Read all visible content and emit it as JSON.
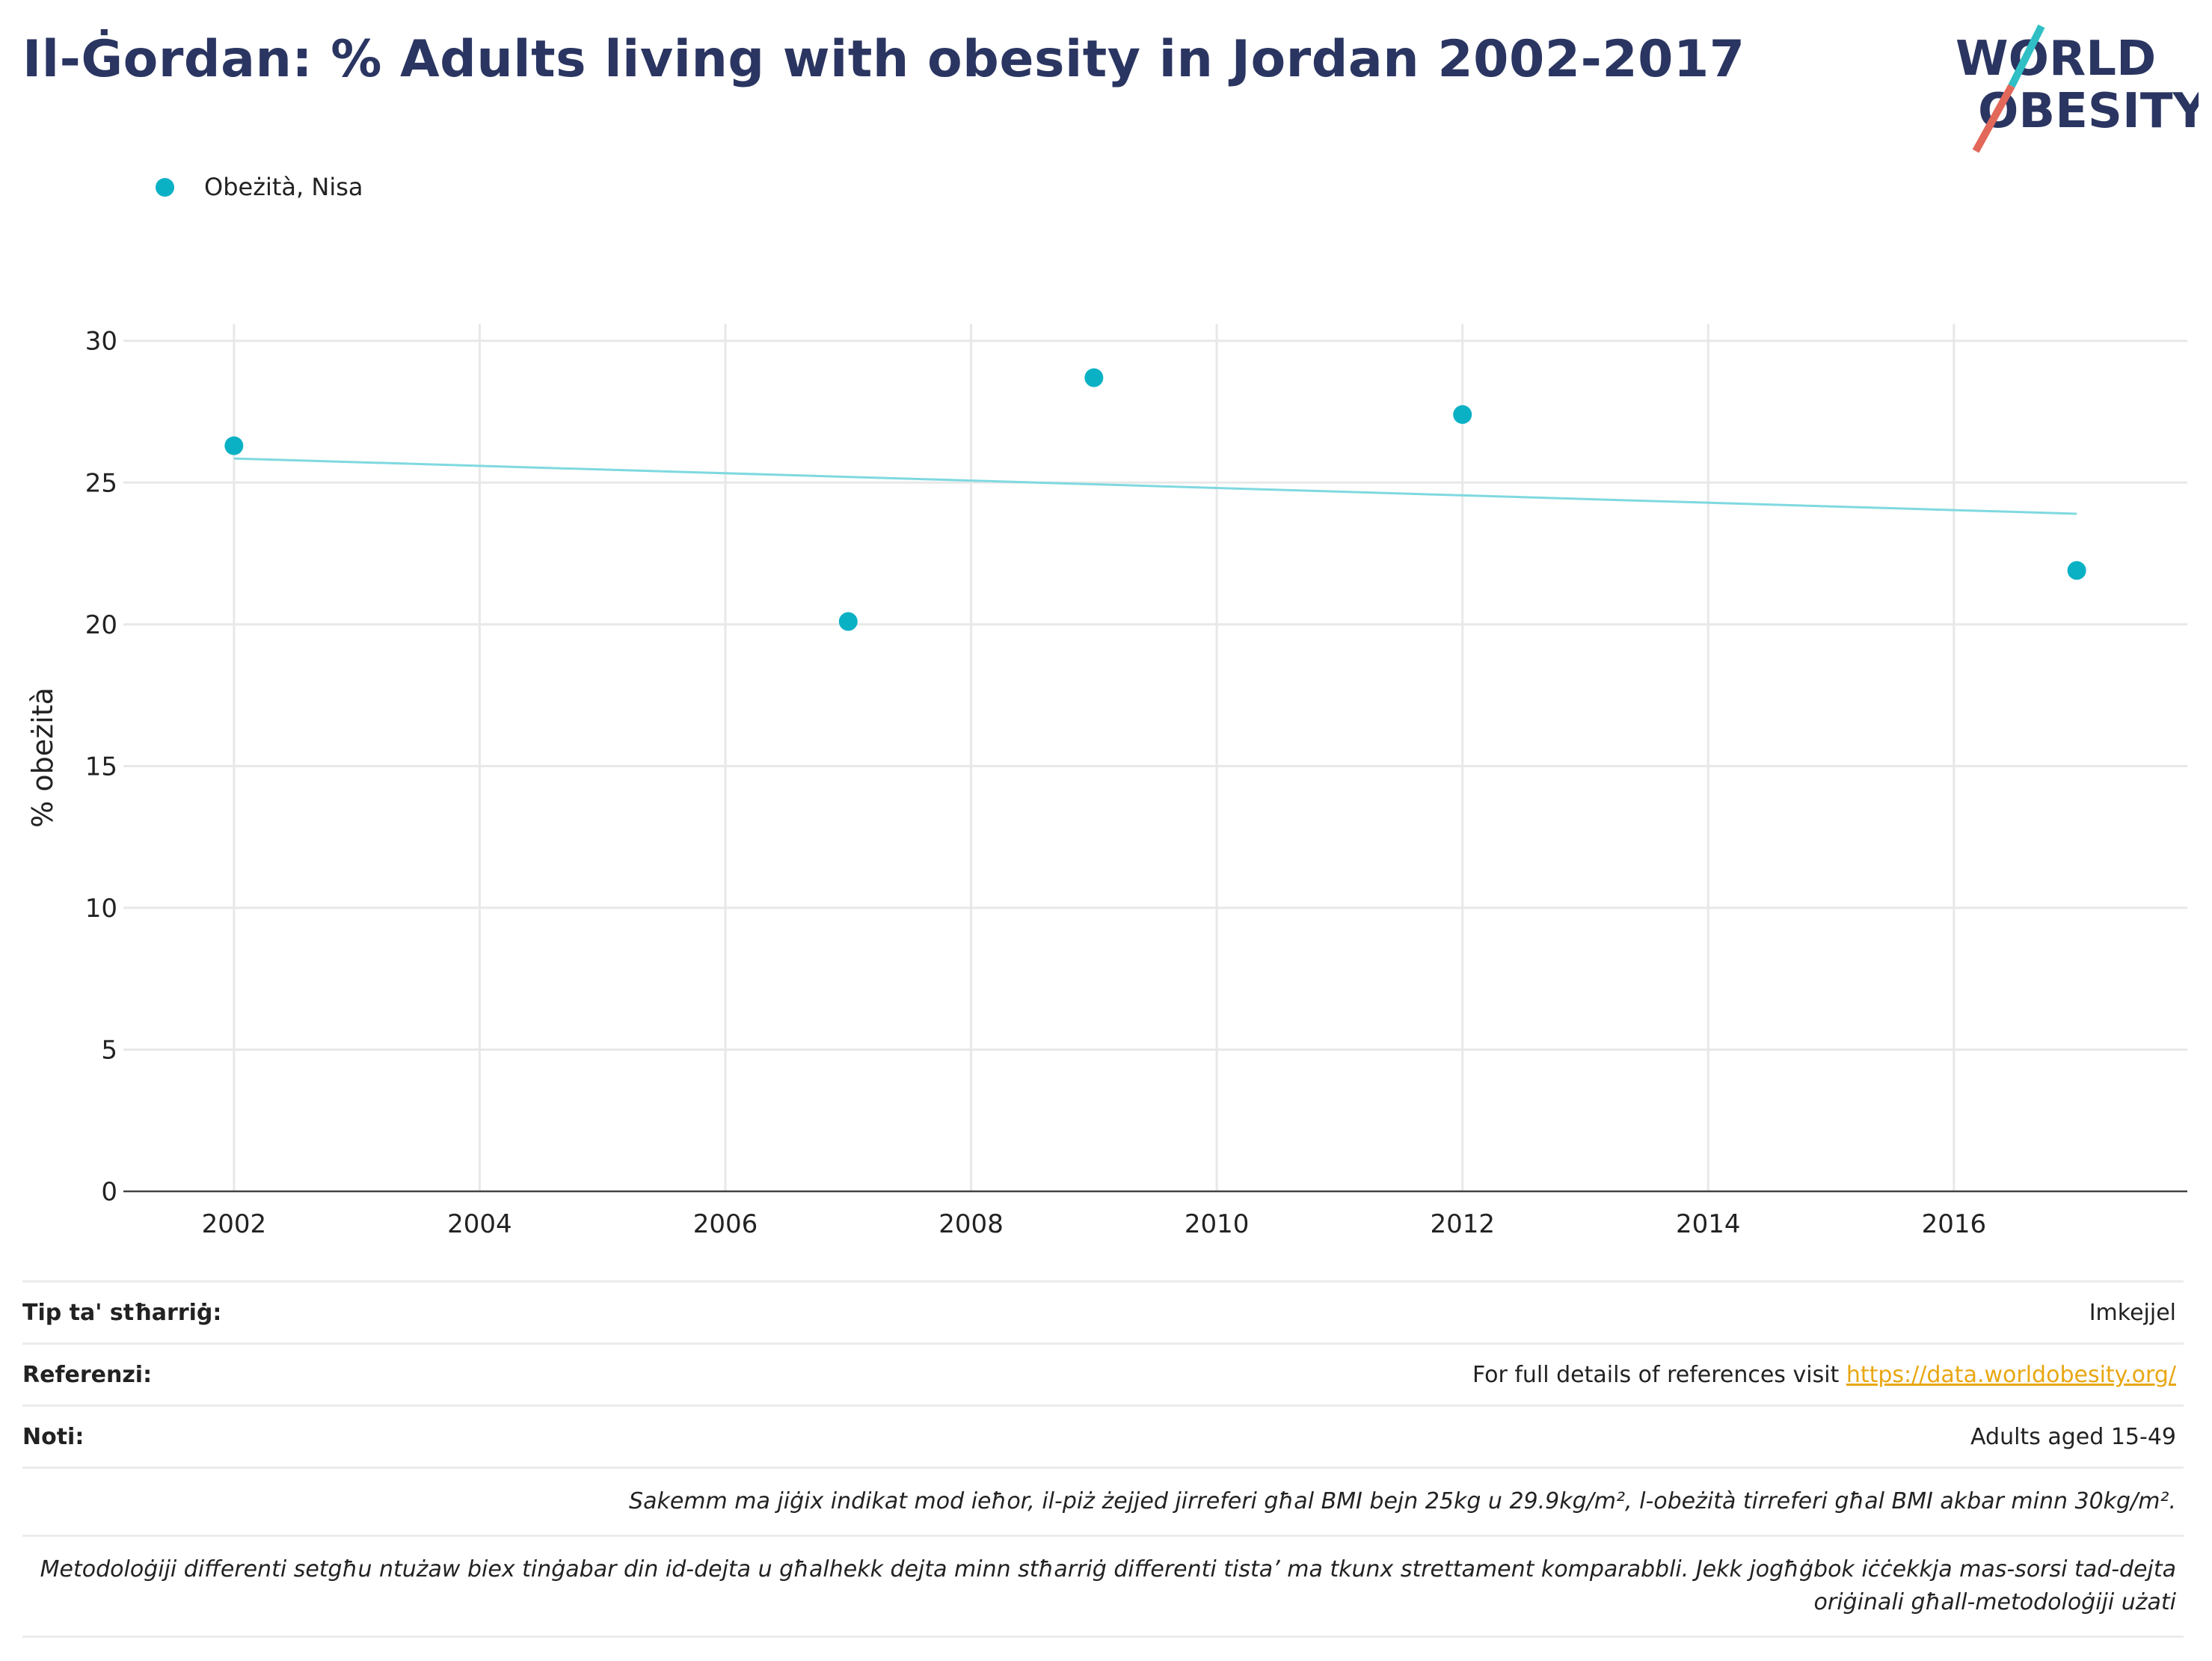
{
  "title": "Il-Ġordan: % Adults living with obesity in Jordan 2002-2017",
  "logo": {
    "line1": "WORLD",
    "line2": "OBESITY"
  },
  "colors": {
    "series": "#0ab1c4",
    "trend": "#7fd9e0",
    "title": "#2a3561",
    "logo_slash_top": "#2fbfc4",
    "logo_slash_bottom": "#e2685a",
    "link": "#e8a712"
  },
  "chart_data": {
    "type": "scatter",
    "title": "Il-Ġordan: % Adults living with obesity in Jordan 2002-2017",
    "xlabel": "",
    "ylabel": "% obeżità",
    "xlim": [
      2001.1,
      2017.9
    ],
    "ylim": [
      0,
      30.6
    ],
    "xticks": [
      2002,
      2004,
      2006,
      2008,
      2010,
      2012,
      2014,
      2016
    ],
    "yticks": [
      0,
      5,
      10,
      15,
      20,
      25,
      30
    ],
    "grid": true,
    "legend_position": "top-left",
    "series": [
      {
        "name": "Obeżità, Nisa",
        "x": [
          2002,
          2007,
          2009,
          2012,
          2017
        ],
        "y": [
          26.3,
          20.1,
          28.7,
          27.4,
          21.9
        ]
      }
    ],
    "trendline": {
      "x": [
        2002,
        2017
      ],
      "y": [
        25.85,
        23.9
      ]
    }
  },
  "info": {
    "source_label": "Tip ta' stħarriġ:",
    "source_value": "Imkejjel",
    "refs_label": "Referenzi:",
    "refs_prefix": "For full details of references visit",
    "refs_link": "https://data.worldobesity.org/",
    "notes_label": "Noti:",
    "notes_value": "Adults aged 15-49",
    "note1": "Sakemm ma jiġix indikat mod ieħor, il-piż żejjed jirreferi għal BMI bejn 25kg u 29.9kg/m², l-obeżità tirreferi għal BMI akbar minn 30kg/m².",
    "note2": "Metodoloġiji differenti setgħu ntużaw biex tinġabar din id-dejta u għalhekk dejta minn stħarriġ differenti tista’ ma tkunx strettament komparabbli. Jekk jogħġbok iċċekkja mas-sorsi tad-dejta oriġinali għall-metodoloġiji użati"
  }
}
